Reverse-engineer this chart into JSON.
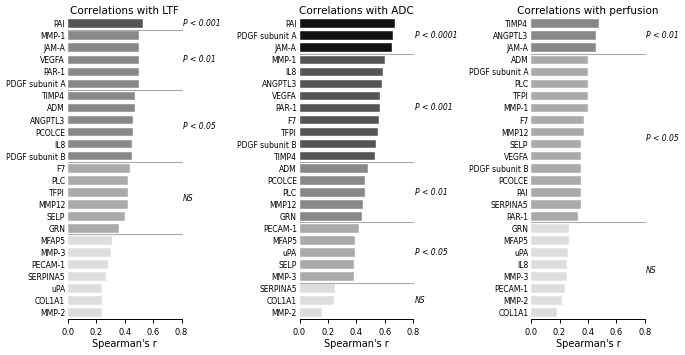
{
  "ltf": {
    "title": "Correlations with LTF",
    "labels": [
      "PAI",
      "MMP-1",
      "JAM-A",
      "VEGFA",
      "PAR-1",
      "PDGF subunit A",
      "TIMP4",
      "ADM",
      "ANGPTL3",
      "PCOLCE",
      "IL8",
      "PDGF subunit B",
      "F7",
      "PLC",
      "TFPI",
      "MMP12",
      "SELP",
      "GRN",
      "MFAP5",
      "MMP-3",
      "PECAM-1",
      "SERPINA5",
      "uPA",
      "COL1A1",
      "MMP-2"
    ],
    "values": [
      0.53,
      0.5,
      0.5,
      0.5,
      0.5,
      0.5,
      0.47,
      0.47,
      0.46,
      0.46,
      0.45,
      0.45,
      0.44,
      0.42,
      0.42,
      0.42,
      0.4,
      0.36,
      0.31,
      0.3,
      0.28,
      0.27,
      0.24,
      0.24,
      0.24
    ],
    "colors": [
      "#555555",
      "#888888",
      "#888888",
      "#888888",
      "#888888",
      "#888888",
      "#888888",
      "#888888",
      "#888888",
      "#888888",
      "#888888",
      "#888888",
      "#aaaaaa",
      "#aaaaaa",
      "#aaaaaa",
      "#aaaaaa",
      "#aaaaaa",
      "#aaaaaa",
      "#dddddd",
      "#dddddd",
      "#dddddd",
      "#dddddd",
      "#dddddd",
      "#dddddd",
      "#dddddd"
    ],
    "sig_configs": [
      {
        "after_idx": 0,
        "label": "P < 0.001"
      },
      {
        "after_idx": 5,
        "label": "P < 0.01"
      },
      {
        "after_idx": 11,
        "label": "P < 0.05"
      },
      {
        "after_idx": 17,
        "label": "NS"
      }
    ]
  },
  "adc": {
    "title": "Correlations with ADC",
    "labels": [
      "PAI",
      "PDGF subunit A",
      "JAM-A",
      "MMP-1",
      "IL8",
      "ANGPTL3",
      "VEGFA",
      "PAR-1",
      "F7",
      "TFPI",
      "PDGF subunit B",
      "TIMP4",
      "ADM",
      "PCOLCE",
      "PLC",
      "MMP12",
      "GRN",
      "PECAM-1",
      "MFAP5",
      "uPA",
      "SELP",
      "MMP-3",
      "SERPINA5",
      "COL1A1",
      "MMP-2"
    ],
    "values": [
      0.67,
      0.66,
      0.65,
      0.6,
      0.59,
      0.58,
      0.57,
      0.57,
      0.56,
      0.55,
      0.54,
      0.53,
      0.48,
      0.46,
      0.46,
      0.45,
      0.44,
      0.42,
      0.39,
      0.39,
      0.38,
      0.38,
      0.25,
      0.24,
      0.16
    ],
    "colors": [
      "#111111",
      "#111111",
      "#111111",
      "#555555",
      "#555555",
      "#555555",
      "#555555",
      "#555555",
      "#555555",
      "#555555",
      "#555555",
      "#555555",
      "#888888",
      "#888888",
      "#888888",
      "#888888",
      "#888888",
      "#aaaaaa",
      "#aaaaaa",
      "#aaaaaa",
      "#aaaaaa",
      "#aaaaaa",
      "#dddddd",
      "#dddddd",
      "#dddddd"
    ],
    "sig_configs": [
      {
        "after_idx": 2,
        "label": "P < 0.0001"
      },
      {
        "after_idx": 11,
        "label": "P < 0.001"
      },
      {
        "after_idx": 16,
        "label": "P < 0.01"
      },
      {
        "after_idx": 21,
        "label": "P < 0.05"
      },
      {
        "after_idx": 24,
        "label": "NS"
      }
    ]
  },
  "perfusion": {
    "title": "Correlations with perfusion",
    "labels": [
      "TIMP4",
      "ANGPTL3",
      "JAM-A",
      "ADM",
      "PDGF subunit A",
      "PLC",
      "TFPI",
      "MMP-1",
      "F7",
      "MMP12",
      "SELP",
      "VEGFA",
      "PDGF subunit B",
      "PCOLCE",
      "PAI",
      "SERPINA5",
      "PAR-1",
      "GRN",
      "MFAP5",
      "uPA",
      "IL8",
      "MMP-3",
      "PECAM-1",
      "MMP-2",
      "COL1A1"
    ],
    "values": [
      0.48,
      0.46,
      0.46,
      0.4,
      0.4,
      0.4,
      0.4,
      0.4,
      0.37,
      0.37,
      0.35,
      0.35,
      0.35,
      0.35,
      0.35,
      0.35,
      0.33,
      0.27,
      0.27,
      0.26,
      0.25,
      0.25,
      0.24,
      0.22,
      0.18
    ],
    "colors": [
      "#888888",
      "#888888",
      "#888888",
      "#aaaaaa",
      "#aaaaaa",
      "#aaaaaa",
      "#aaaaaa",
      "#aaaaaa",
      "#aaaaaa",
      "#aaaaaa",
      "#aaaaaa",
      "#aaaaaa",
      "#aaaaaa",
      "#aaaaaa",
      "#aaaaaa",
      "#aaaaaa",
      "#aaaaaa",
      "#dddddd",
      "#dddddd",
      "#dddddd",
      "#dddddd",
      "#dddddd",
      "#dddddd",
      "#dddddd",
      "#dddddd"
    ],
    "sig_configs": [
      {
        "after_idx": 2,
        "label": "P < 0.01"
      },
      {
        "after_idx": 16,
        "label": "P < 0.05"
      },
      {
        "after_idx": 24,
        "label": "NS"
      }
    ]
  },
  "xlim": [
    0.0,
    0.8
  ],
  "xticks": [
    0.0,
    0.2,
    0.4,
    0.6,
    0.8
  ],
  "xlabel": "Spearman's r",
  "bar_height": 0.72,
  "figsize": [
    6.85,
    3.55
  ],
  "dpi": 100
}
